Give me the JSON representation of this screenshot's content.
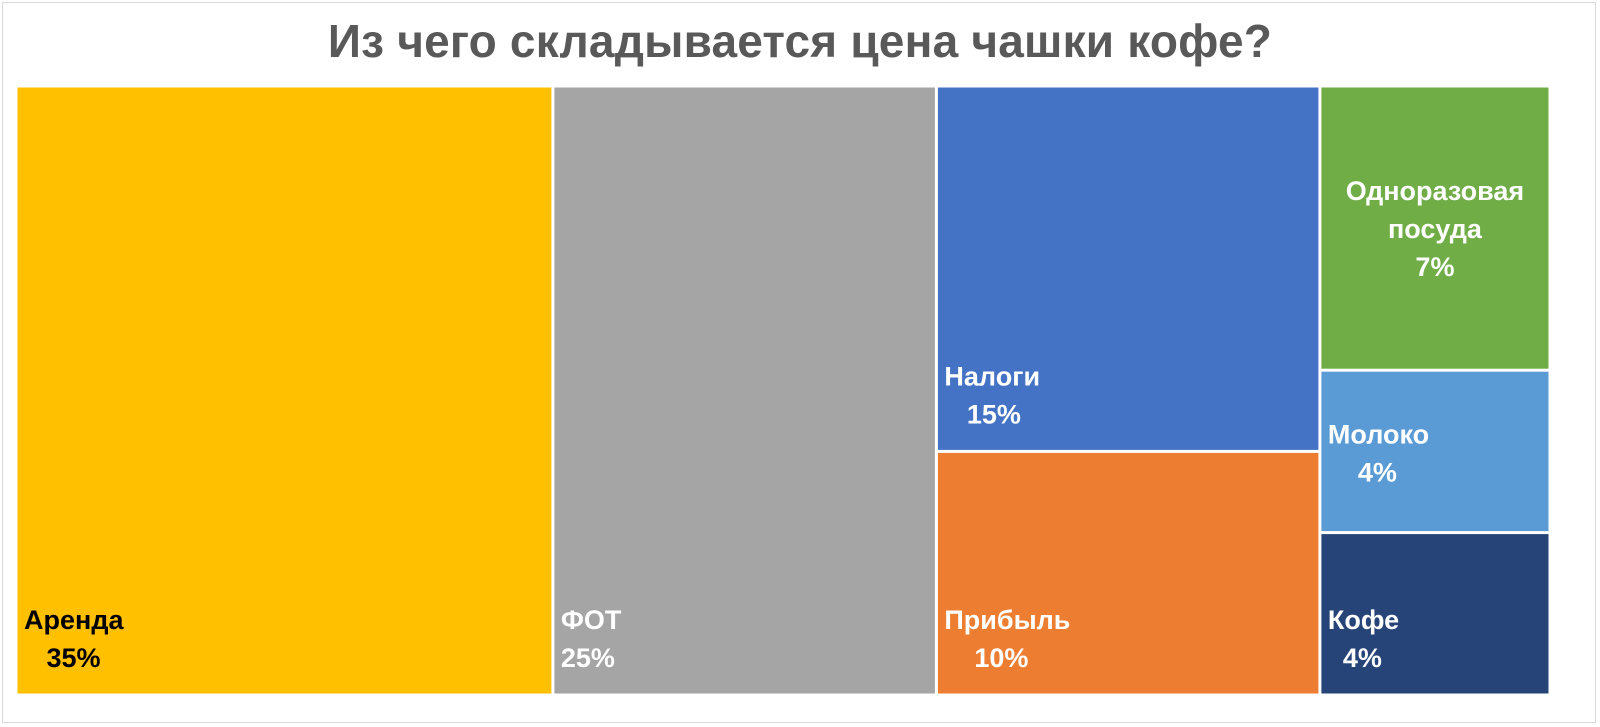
{
  "chart_data": {
    "type": "treemap",
    "title": "Из чего складывается цена чашки кофе?",
    "items": [
      {
        "name": "Аренда",
        "value": 35,
        "label": "35%",
        "color": "#FFC000",
        "text_color": "#000000",
        "label_lines": [
          "Аренда"
        ]
      },
      {
        "name": "ФОТ",
        "value": 25,
        "label": "25%",
        "color": "#A5A5A5",
        "text_color": "#FFFFFF",
        "label_lines": [
          "ФОТ"
        ]
      },
      {
        "name": "Налоги",
        "value": 15,
        "label": "15%",
        "color": "#4472C4",
        "text_color": "#FFFFFF",
        "label_lines": [
          "Налоги"
        ]
      },
      {
        "name": "Прибыль",
        "value": 10,
        "label": "10%",
        "color": "#ED7D31",
        "text_color": "#FFFFFF",
        "label_lines": [
          "Прибыль"
        ]
      },
      {
        "name": "Одноразовая посуда",
        "value": 7,
        "label": "7%",
        "color": "#70AD47",
        "text_color": "#FFFFFF",
        "label_lines": [
          "Одноразовая",
          "посуда"
        ]
      },
      {
        "name": "Молоко",
        "value": 4,
        "label": "4%",
        "color": "#5B9BD5",
        "text_color": "#FFFFFF",
        "label_lines": [
          "Молоко"
        ]
      },
      {
        "name": "Кофе",
        "value": 4,
        "label": "4%",
        "color": "#264478",
        "text_color": "#FFFFFF",
        "label_lines": [
          "Кофе"
        ]
      }
    ]
  }
}
